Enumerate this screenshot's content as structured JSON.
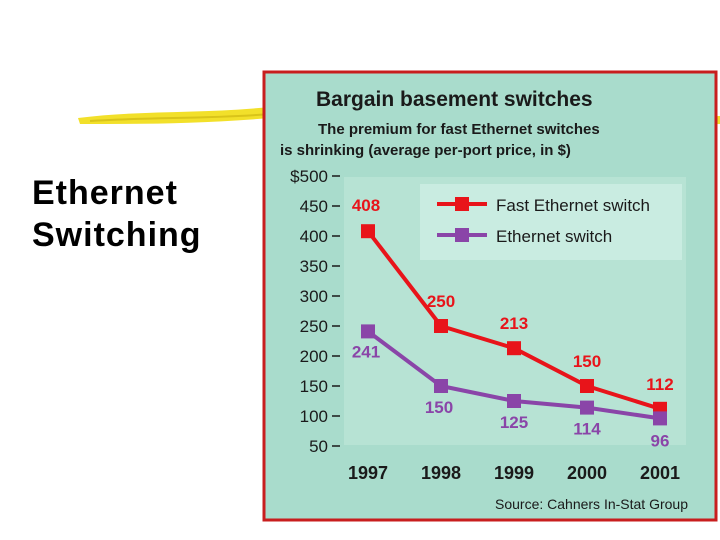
{
  "slide": {
    "title_line1": "Ethernet",
    "title_line2": "Switching"
  },
  "colors": {
    "fast": "#e8141a",
    "ethernet": "#8a45a8",
    "panel": "#a9dccc",
    "legend_bg": "#c9ece1",
    "frame": "#c81e1e"
  },
  "chart_data": {
    "type": "line",
    "title": "Bargain basement switches",
    "subtitle_line1": "The premium for fast Ethernet switches",
    "subtitle_line2": "is shrinking (average per-port price, in $)",
    "source": "Source: Cahners In-Stat Group",
    "categories": [
      "1997",
      "1998",
      "1999",
      "2000",
      "2001"
    ],
    "ylim": [
      50,
      500
    ],
    "yticks": [
      "$500",
      "450",
      "400",
      "350",
      "300",
      "250",
      "200",
      "150",
      "100",
      "50"
    ],
    "grid": false,
    "legend_position": "top-right",
    "series": [
      {
        "name": "Fast Ethernet switch",
        "values": [
          408,
          250,
          213,
          150,
          112
        ],
        "color": "#e8141a"
      },
      {
        "name": "Ethernet switch",
        "values": [
          241,
          150,
          125,
          114,
          96
        ],
        "color": "#8a45a8"
      }
    ]
  }
}
